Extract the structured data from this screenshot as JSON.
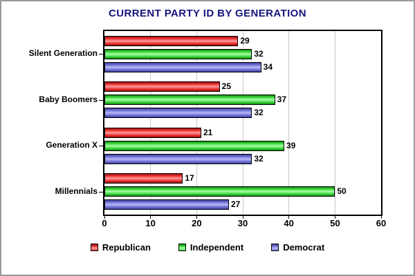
{
  "chart_data": {
    "type": "bar",
    "orientation": "horizontal",
    "title": "CURRENT PARTY ID BY GENERATION",
    "title_color": "#14147d",
    "categories": [
      "Silent Generation",
      "Baby Boomers",
      "Generation X",
      "Millennials"
    ],
    "series": [
      {
        "name": "Republican",
        "color": "#ee3434",
        "color_light": "#ff9d9d",
        "color_dark": "#9e0f0f",
        "values": [
          29,
          25,
          21,
          17
        ]
      },
      {
        "name": "Independent",
        "color": "#3fd83f",
        "color_light": "#a8ffa8",
        "color_dark": "#0f8f0f",
        "values": [
          32,
          37,
          39,
          50
        ]
      },
      {
        "name": "Democrat",
        "color": "#7373d8",
        "color_light": "#b9b9f6",
        "color_dark": "#41419e",
        "values": [
          34,
          32,
          32,
          27
        ]
      }
    ],
    "xlim": [
      0,
      60
    ],
    "xticks": [
      0,
      10,
      20,
      30,
      40,
      50,
      60
    ],
    "grid": "vertical-gray-lines",
    "gridline_color": "#c9c9c9",
    "legend_position": "bottom"
  }
}
